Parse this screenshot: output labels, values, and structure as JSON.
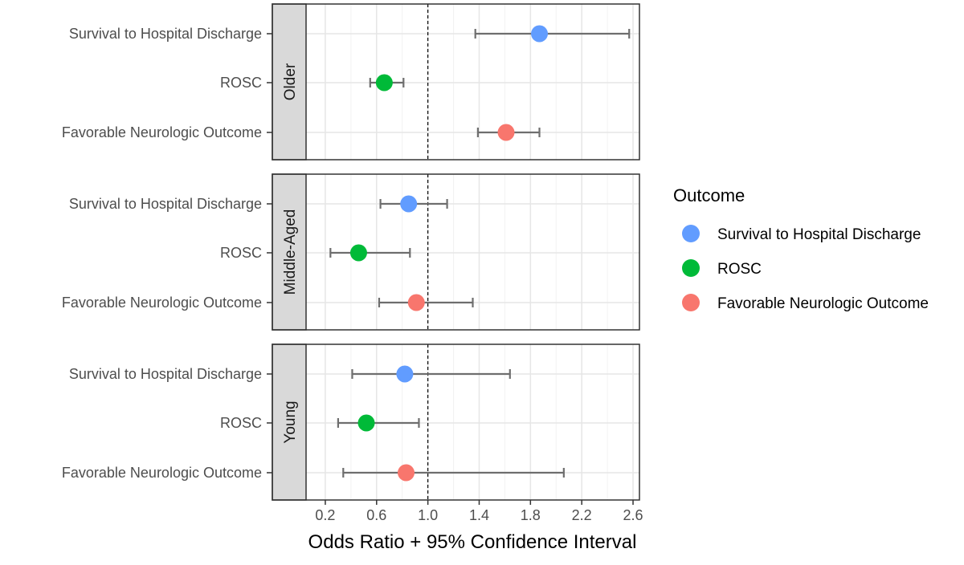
{
  "chart_data": {
    "type": "forest",
    "title": "",
    "xlabel": "Odds Ratio + 95% Confidence Interval",
    "xlim": [
      0.05,
      2.65
    ],
    "xticks": [
      0.2,
      0.6,
      1.0,
      1.4,
      1.8,
      2.2,
      2.6
    ],
    "xtick_labels": [
      "0.2",
      "0.6",
      "1.0",
      "1.4",
      "1.8",
      "2.2",
      "2.6"
    ],
    "reference_line": 1.0,
    "grid": true,
    "outcomes": [
      "Survival to Hospital Discharge",
      "ROSC",
      "Favorable Neurologic Outcome"
    ],
    "panels": [
      {
        "label": "Older",
        "points": [
          {
            "outcome": "Survival to Hospital Discharge",
            "or": 1.87,
            "lower": 1.37,
            "upper": 2.57
          },
          {
            "outcome": "ROSC",
            "or": 0.66,
            "lower": 0.55,
            "upper": 0.81
          },
          {
            "outcome": "Favorable Neurologic Outcome",
            "or": 1.61,
            "lower": 1.39,
            "upper": 1.87
          }
        ]
      },
      {
        "label": "Middle-Aged",
        "points": [
          {
            "outcome": "Survival to Hospital Discharge",
            "or": 0.85,
            "lower": 0.63,
            "upper": 1.15
          },
          {
            "outcome": "ROSC",
            "or": 0.46,
            "lower": 0.24,
            "upper": 0.86
          },
          {
            "outcome": "Favorable Neurologic Outcome",
            "or": 0.91,
            "lower": 0.62,
            "upper": 1.35
          }
        ]
      },
      {
        "label": "Young",
        "points": [
          {
            "outcome": "Survival to Hospital Discharge",
            "or": 0.82,
            "lower": 0.41,
            "upper": 1.64
          },
          {
            "outcome": "ROSC",
            "or": 0.52,
            "lower": 0.3,
            "upper": 0.93
          },
          {
            "outcome": "Favorable Neurologic Outcome",
            "or": 0.83,
            "lower": 0.34,
            "upper": 2.06
          }
        ]
      }
    ],
    "legend": {
      "title": "Outcome",
      "placement": "right",
      "entries": [
        {
          "label": "Survival to Hospital Discharge",
          "color": "#619CFF"
        },
        {
          "label": "ROSC",
          "color": "#00BA38"
        },
        {
          "label": "Favorable Neurologic Outcome",
          "color": "#F8766D"
        }
      ]
    },
    "colors": {
      "Survival to Hospital Discharge": "#619CFF",
      "ROSC": "#00BA38",
      "Favorable Neurologic Outcome": "#F8766D"
    }
  }
}
